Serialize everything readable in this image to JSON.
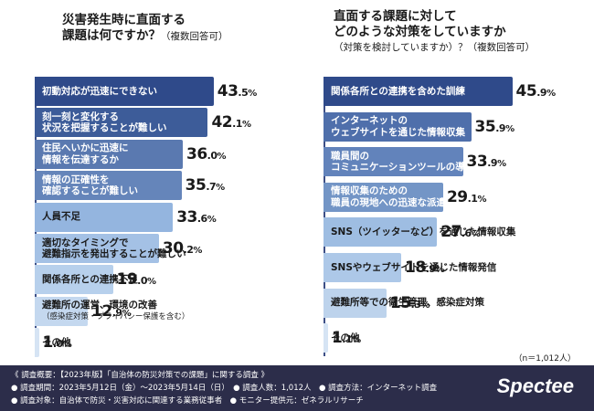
{
  "left": {
    "title_lines": [
      "災害発生時に直面する",
      "課題は何ですか？"
    ],
    "title_note": "（複数回答可）",
    "chart_data": {
      "type": "bar",
      "orientation": "horizontal",
      "categories": [
        "初動対応が迅速にできない",
        "刻一刻と変化する\n状況を把握することが難しい",
        "住民へいかに迅速に\n情報を伝達するか",
        "情報の正確性を\n確認することが難しい",
        "人員不足",
        "適切なタイミングで\n避難指示を発出することが難しい",
        "関係各所との連携不足",
        "避難所の運営、環境の改善",
        "その他"
      ],
      "category_notes": [
        "",
        "",
        "",
        "",
        "",
        "",
        "",
        "（感染症対策・プライバシー保護を含む）",
        ""
      ],
      "values": [
        43.5,
        42.1,
        36.0,
        35.7,
        33.6,
        30.2,
        19.0,
        12.9,
        1.0
      ],
      "value_labels": [
        "43.5%",
        "42.1%",
        "36.0%",
        "35.7%",
        "33.6%",
        "30.2%",
        "19.0%",
        "12.9%",
        "1.0%"
      ],
      "colors": [
        "#2f4a8a",
        "#3d5c99",
        "#5a79b0",
        "#6585ba",
        "#94b5df",
        "#a4c1e5",
        "#b7d0ec",
        "#c4d8ef",
        "#d6e4f4"
      ]
    }
  },
  "right": {
    "title_lines": [
      "直面する課題に対して",
      "どのような対策をしていますか"
    ],
    "title_note": "（対策を検討していますか）？（複数回答可）",
    "chart_data": {
      "type": "bar",
      "orientation": "horizontal",
      "categories": [
        "関係各所との連携を含めた訓練",
        "インターネットの\nウェブサイトを通じた情報収集",
        "職員間の\nコミュニケーションツールの導入",
        "情報収集のための\n職員の現地への迅速な派遣",
        "SNS（ツイッターなど）を通じた情報収集",
        "SNSやウェブサイトを通じた情報発信",
        "避難所等での衛生管理、感染症対策",
        "その他"
      ],
      "values": [
        45.9,
        35.9,
        33.9,
        29.1,
        27.6,
        18.9,
        15.3,
        1.1
      ],
      "value_labels": [
        "45.9%",
        "35.9%",
        "33.9%",
        "29.1%",
        "27.6%",
        "18.9%",
        "15.3%",
        "1.1%"
      ],
      "colors": [
        "#2f4a8a",
        "#4f6fab",
        "#6283bb",
        "#7395c6",
        "#9ebde2",
        "#adc8e8",
        "#bdd3ec",
        "#d6e4f4"
      ]
    }
  },
  "sample_size": "（n＝1,012人）",
  "footer": {
    "line1": "《 調査概要：【2023年版】「自治体の防災対策での課題」に関する調査 》",
    "line2": "● 調査期間：2023年5月12日（金）〜2023年5月14日（日）　● 調査人数：1,012人　● 調査方法：インターネット調査",
    "line3": "● 調査対象：自治体で防災・災害対応に関連する業務従事者　● モニター提供元：ゼネラルリサーチ",
    "brand": "Spectee"
  }
}
